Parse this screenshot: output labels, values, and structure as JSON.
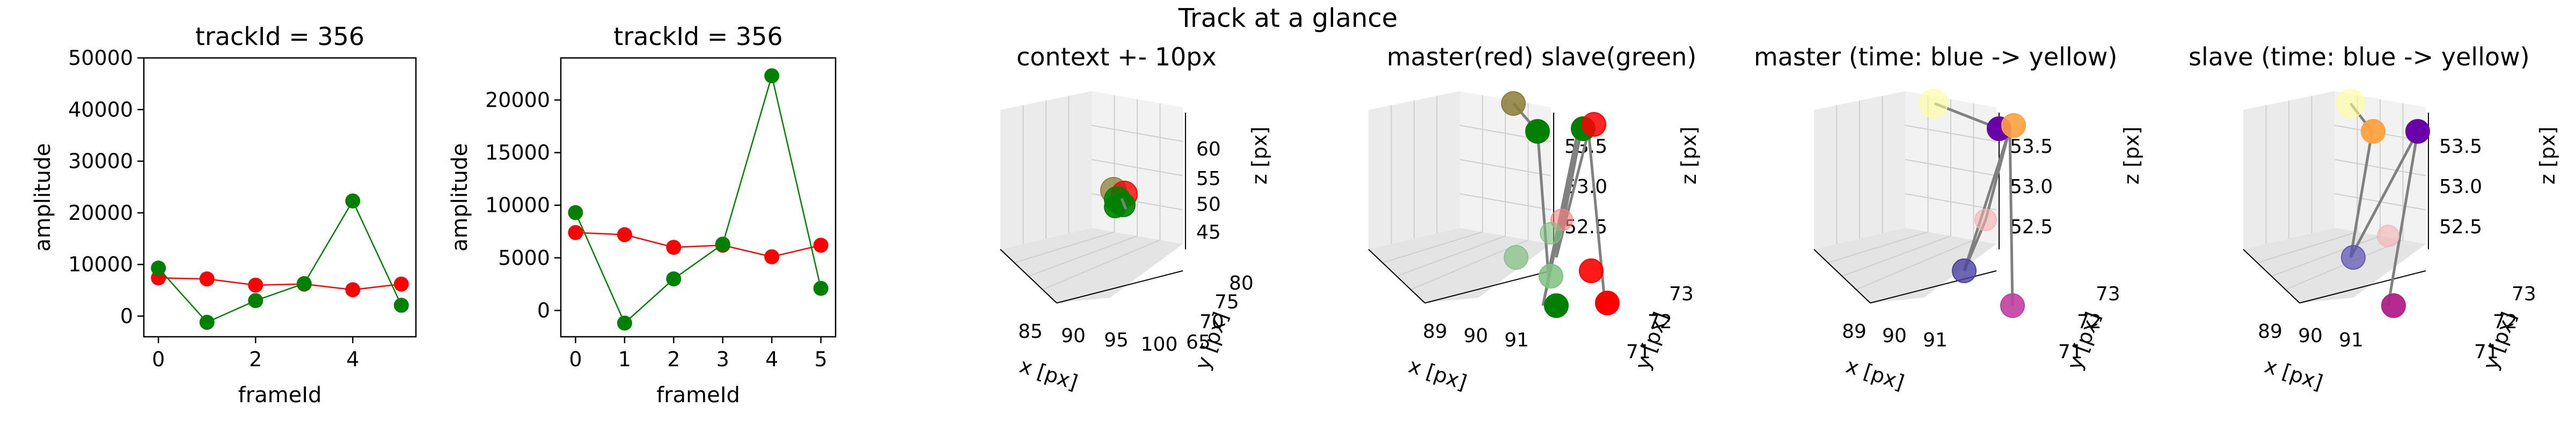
{
  "figure": {
    "suptitle": "Track at a glance"
  },
  "colors": {
    "red": "#ff0000",
    "green": "#008000",
    "trail": "#808080"
  },
  "chart_data": [
    {
      "type": "line",
      "title": "trackId = 356",
      "xlabel": "frameId",
      "ylabel": "amplitude",
      "x": [
        0,
        1,
        2,
        3,
        4,
        5
      ],
      "xticks": [
        "0",
        "2",
        "4"
      ],
      "xtick_values": [
        0,
        2,
        4
      ],
      "yticks": [
        "0",
        "10000",
        "20000",
        "30000",
        "40000",
        "50000"
      ],
      "ytick_values": [
        0,
        10000,
        20000,
        30000,
        40000,
        50000
      ],
      "xlim": [
        -0.3,
        5.3
      ],
      "ylim": [
        -4000,
        50000
      ],
      "grid": false,
      "series": [
        {
          "color": "#ff0000",
          "values": [
            7400,
            7200,
            6000,
            6200,
            5100,
            6200
          ]
        },
        {
          "color": "#008000",
          "values": [
            9300,
            -1200,
            3000,
            6300,
            22300,
            2100
          ]
        }
      ]
    },
    {
      "type": "line",
      "title": "trackId = 356",
      "xlabel": "frameId",
      "ylabel": "amplitude",
      "x": [
        0,
        1,
        2,
        3,
        4,
        5
      ],
      "xticks": [
        "0",
        "1",
        "2",
        "3",
        "4",
        "5"
      ],
      "xtick_values": [
        0,
        1,
        2,
        3,
        4,
        5
      ],
      "yticks": [
        "0",
        "5000",
        "10000",
        "15000",
        "20000"
      ],
      "ytick_values": [
        0,
        5000,
        10000,
        15000,
        20000
      ],
      "xlim": [
        -0.3,
        5.3
      ],
      "ylim": [
        -2500,
        24000
      ],
      "grid": false,
      "series": [
        {
          "color": "#ff0000",
          "values": [
            7400,
            7200,
            6000,
            6200,
            5100,
            6200
          ]
        },
        {
          "color": "#008000",
          "values": [
            9300,
            -1200,
            3000,
            6300,
            22300,
            2100
          ]
        }
      ]
    },
    {
      "type": "scatter",
      "projection": "3d",
      "title": "context +- 10px",
      "xlabel": "x [px]",
      "ylabel": "y [px]",
      "zlabel": "z [px]",
      "xticks": [
        "85",
        "90",
        "95",
        "100"
      ],
      "yticks": [
        "65",
        "70",
        "75",
        "80"
      ],
      "zticks": [
        "45",
        "50",
        "55",
        "60"
      ],
      "grid": true
    },
    {
      "type": "scatter",
      "projection": "3d",
      "title": "master(red) slave(green)",
      "xlabel": "x [px]",
      "ylabel": "y [px]",
      "zlabel": "z [px]",
      "xticks": [
        "89",
        "90",
        "91"
      ],
      "yticks": [
        "71",
        "72",
        "73"
      ],
      "zticks": [
        "52.5",
        "53.0",
        "53.5"
      ],
      "grid": true
    },
    {
      "type": "scatter",
      "projection": "3d",
      "title": "master (time: blue -> yellow)",
      "xlabel": "x [px]",
      "ylabel": "y [px]",
      "zlabel": "z [px]",
      "xticks": [
        "89",
        "90",
        "91"
      ],
      "yticks": [
        "71",
        "72",
        "73"
      ],
      "zticks": [
        "52.5",
        "53.0",
        "53.5"
      ],
      "grid": true
    },
    {
      "type": "scatter",
      "projection": "3d",
      "title": "slave (time: blue -> yellow)",
      "xlabel": "x [px]",
      "ylabel": "y [px]",
      "zlabel": "z [px]",
      "xticks": [
        "89",
        "90",
        "91"
      ],
      "yticks": [
        "71",
        "72",
        "73"
      ],
      "zticks": [
        "52.5",
        "53.0",
        "53.5"
      ],
      "grid": true
    }
  ]
}
